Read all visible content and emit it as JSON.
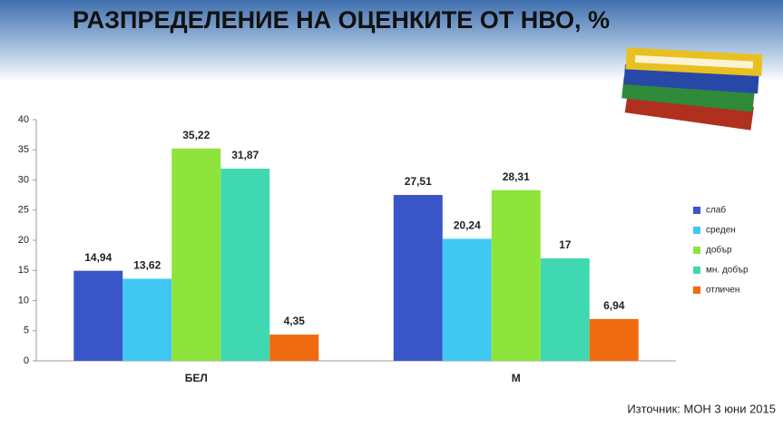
{
  "chart_data": {
    "type": "bar",
    "title": "РАЗПРЕДЕЛЕНИЕ НА ОЦЕНКИТЕ ОТ НВО, %",
    "source": "Източник: МОН 3 юни 2015",
    "categories": [
      "БЕЛ",
      "М"
    ],
    "series": [
      {
        "name": "слаб",
        "color": "#3a55c8",
        "values": [
          14.94,
          27.51
        ],
        "value_labels": [
          "14,94",
          "27,51"
        ]
      },
      {
        "name": "среден",
        "color": "#40c8f2",
        "values": [
          13.62,
          20.24
        ],
        "value_labels": [
          "13,62",
          "20,24"
        ]
      },
      {
        "name": "добър",
        "color": "#8ee43a",
        "values": [
          35.22,
          28.31
        ],
        "value_labels": [
          "35,22",
          "28,31"
        ]
      },
      {
        "name": "мн. добър",
        "color": "#40d8b0",
        "values": [
          31.87,
          17
        ],
        "value_labels": [
          "31,87",
          "17"
        ]
      },
      {
        "name": "отличен",
        "color": "#f06a10",
        "values": [
          4.35,
          6.94
        ],
        "value_labels": [
          "4,35",
          "6,94"
        ]
      }
    ],
    "ylim": [
      0,
      40
    ],
    "yticks": [
      0,
      5,
      10,
      15,
      20,
      25,
      30,
      35,
      40
    ],
    "grid": false,
    "legend": "right"
  }
}
